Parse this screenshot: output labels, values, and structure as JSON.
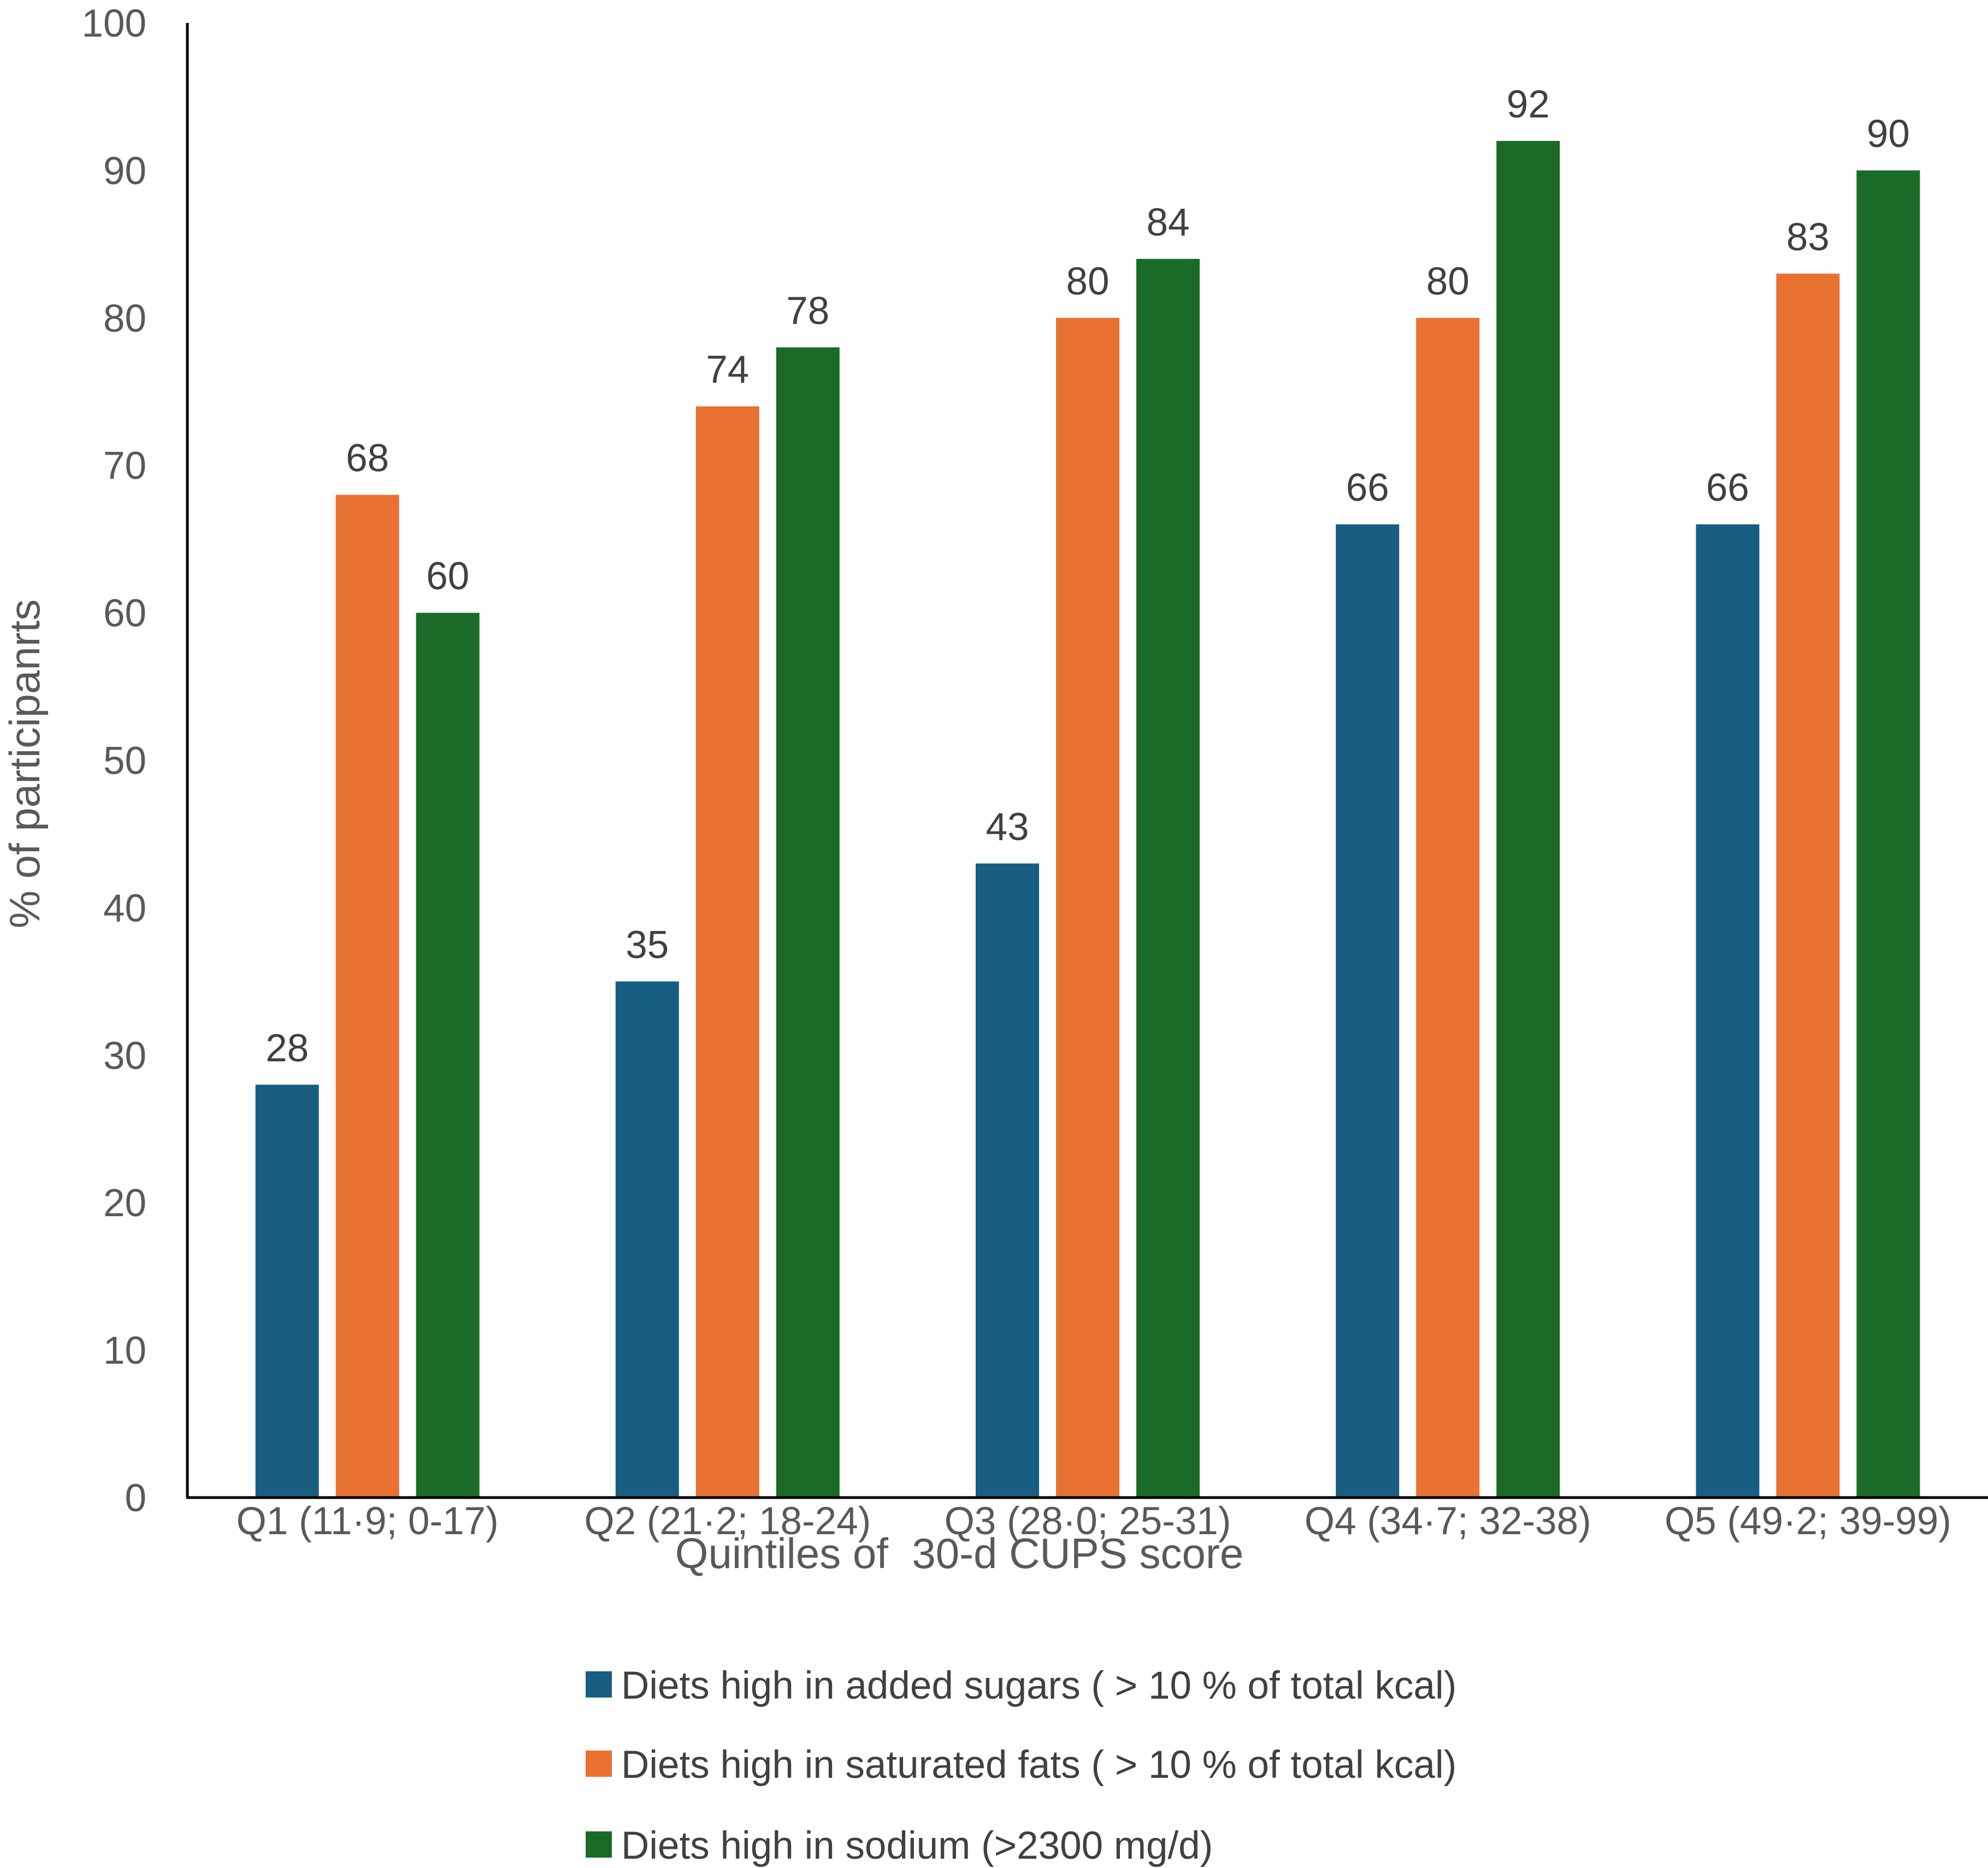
{
  "chart_data": {
    "type": "bar",
    "title": "",
    "xlabel": "Quintiles of  30-d CUPS score",
    "ylabel": "% of participanrts",
    "ylim": [
      0,
      100
    ],
    "yticks": [
      0,
      10,
      20,
      30,
      40,
      50,
      60,
      70,
      80,
      90,
      100
    ],
    "grid": false,
    "legend_position": "bottom",
    "categories": [
      "Q1 (11·9; 0-17)",
      "Q2 (21·2; 18-24)",
      "Q3 (28·0; 25-31)",
      "Q4 (34·7; 32-38)",
      "Q5 (49·2; 39-99)"
    ],
    "series": [
      {
        "name": "Diets high in added sugars ( > 10 % of total kcal)",
        "color": "#175E82",
        "values": [
          28,
          35,
          43,
          66,
          66
        ]
      },
      {
        "name": "Diets high in saturated fats ( > 10 % of total kcal)",
        "color": "#E97132",
        "values": [
          68,
          74,
          80,
          80,
          83
        ]
      },
      {
        "name": "Diets high in sodium (>2300 mg/d)",
        "color": "#1A6B27",
        "values": [
          60,
          78,
          84,
          92,
          90
        ]
      }
    ]
  }
}
